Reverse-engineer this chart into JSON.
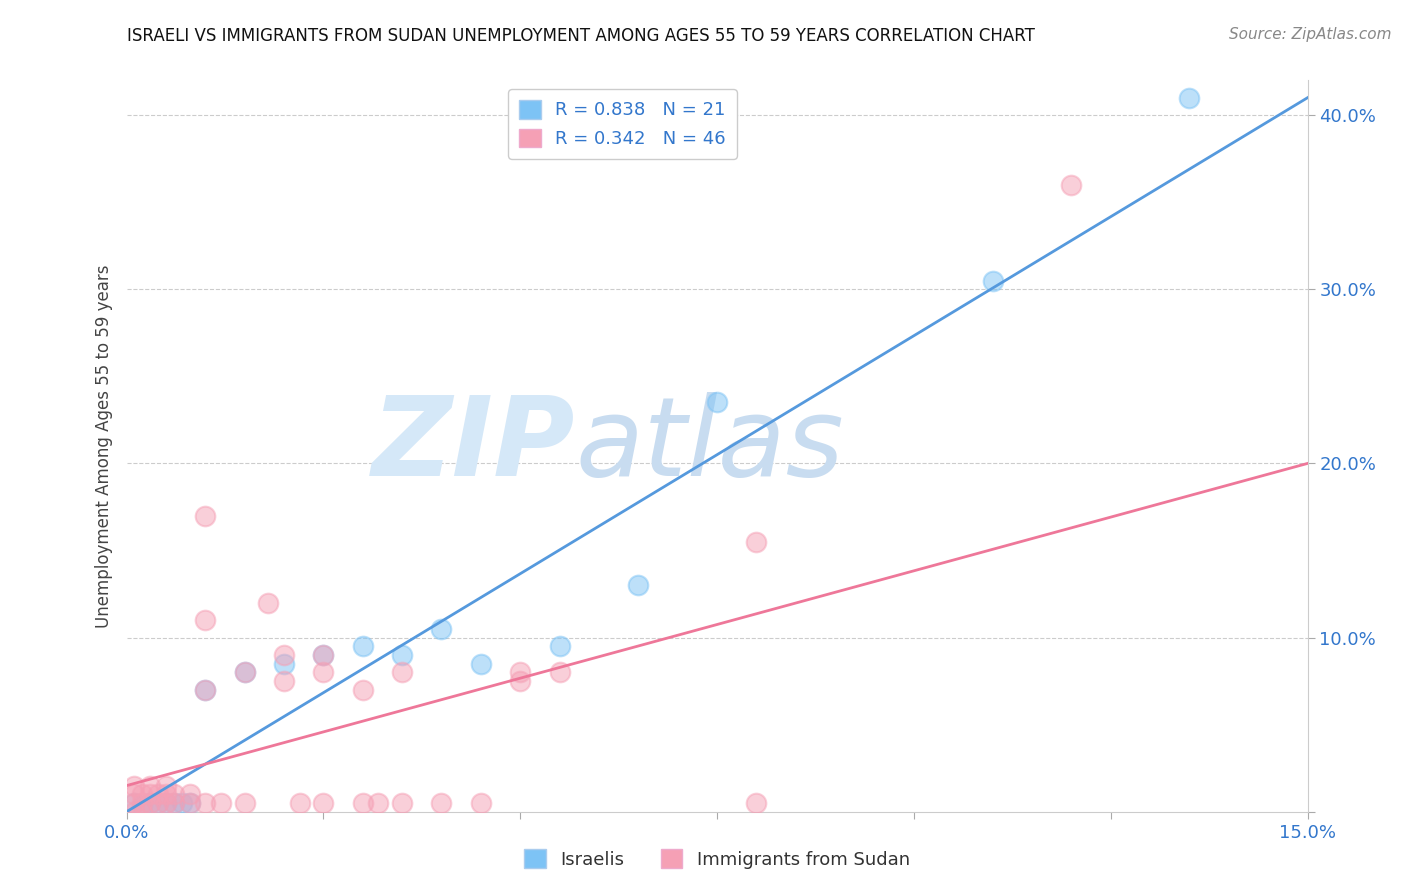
{
  "title": "ISRAELI VS IMMIGRANTS FROM SUDAN UNEMPLOYMENT AMONG AGES 55 TO 59 YEARS CORRELATION CHART",
  "source": "Source: ZipAtlas.com",
  "ylabel": "Unemployment Among Ages 55 to 59 years",
  "xlim": [
    0.0,
    0.15
  ],
  "ylim": [
    0.0,
    0.42
  ],
  "xticks": [
    0.0,
    0.025,
    0.05,
    0.075,
    0.1,
    0.125,
    0.15
  ],
  "yticks": [
    0.0,
    0.1,
    0.2,
    0.3,
    0.4
  ],
  "blue_R": 0.838,
  "blue_N": 21,
  "pink_R": 0.342,
  "pink_N": 46,
  "blue_color": "#7dc3f5",
  "pink_color": "#f5a0b5",
  "blue_line_color": "#5599dd",
  "pink_line_color": "#ee7799",
  "watermark_zip": "ZIP",
  "watermark_atlas": "atlas",
  "watermark_color": "#d5e8f8",
  "blue_points": [
    [
      0.001,
      0.005
    ],
    [
      0.002,
      0.003
    ],
    [
      0.003,
      0.005
    ],
    [
      0.004,
      0.005
    ],
    [
      0.005,
      0.005
    ],
    [
      0.006,
      0.005
    ],
    [
      0.007,
      0.005
    ],
    [
      0.008,
      0.005
    ],
    [
      0.01,
      0.07
    ],
    [
      0.015,
      0.08
    ],
    [
      0.02,
      0.085
    ],
    [
      0.025,
      0.09
    ],
    [
      0.03,
      0.095
    ],
    [
      0.035,
      0.09
    ],
    [
      0.04,
      0.105
    ],
    [
      0.045,
      0.085
    ],
    [
      0.055,
      0.095
    ],
    [
      0.065,
      0.13
    ],
    [
      0.075,
      0.235
    ],
    [
      0.11,
      0.305
    ],
    [
      0.135,
      0.41
    ]
  ],
  "pink_points": [
    [
      0.001,
      0.005
    ],
    [
      0.001,
      0.01
    ],
    [
      0.001,
      0.015
    ],
    [
      0.001,
      0.0
    ],
    [
      0.002,
      0.005
    ],
    [
      0.002,
      0.01
    ],
    [
      0.002,
      0.0
    ],
    [
      0.003,
      0.005
    ],
    [
      0.003,
      0.01
    ],
    [
      0.003,
      0.015
    ],
    [
      0.004,
      0.005
    ],
    [
      0.004,
      0.01
    ],
    [
      0.005,
      0.005
    ],
    [
      0.005,
      0.01
    ],
    [
      0.005,
      0.015
    ],
    [
      0.006,
      0.005
    ],
    [
      0.006,
      0.01
    ],
    [
      0.008,
      0.005
    ],
    [
      0.008,
      0.01
    ],
    [
      0.01,
      0.005
    ],
    [
      0.01,
      0.07
    ],
    [
      0.01,
      0.11
    ],
    [
      0.01,
      0.17
    ],
    [
      0.012,
      0.005
    ],
    [
      0.015,
      0.005
    ],
    [
      0.015,
      0.08
    ],
    [
      0.018,
      0.12
    ],
    [
      0.02,
      0.075
    ],
    [
      0.02,
      0.09
    ],
    [
      0.022,
      0.005
    ],
    [
      0.025,
      0.005
    ],
    [
      0.025,
      0.08
    ],
    [
      0.025,
      0.09
    ],
    [
      0.03,
      0.005
    ],
    [
      0.03,
      0.07
    ],
    [
      0.032,
      0.005
    ],
    [
      0.035,
      0.005
    ],
    [
      0.035,
      0.08
    ],
    [
      0.04,
      0.005
    ],
    [
      0.045,
      0.005
    ],
    [
      0.05,
      0.075
    ],
    [
      0.05,
      0.08
    ],
    [
      0.055,
      0.08
    ],
    [
      0.08,
      0.005
    ],
    [
      0.08,
      0.155
    ],
    [
      0.12,
      0.36
    ]
  ],
  "blue_line_x": [
    0.0,
    0.15
  ],
  "blue_line_y": [
    0.0,
    0.41
  ],
  "pink_line_x": [
    0.0,
    0.15
  ],
  "pink_line_y": [
    0.015,
    0.2
  ]
}
